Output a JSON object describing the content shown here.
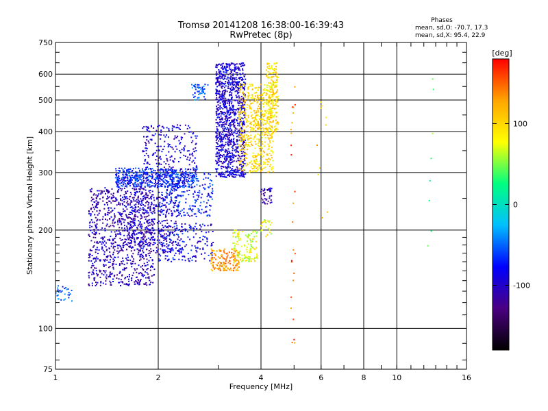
{
  "chart_data": {
    "type": "scatter",
    "title": "Tromsø 20141208 16:38:00-16:39:43",
    "subtitle": "RwPretec (8p)",
    "xlabel": "Frequency [MHz]",
    "ylabel": "Stationary phase Virtual Height [km]",
    "x_scale": "log",
    "y_scale": "log",
    "xlim": [
      1,
      16
    ],
    "ylim": [
      75,
      750
    ],
    "x_ticks": [
      1,
      2,
      4,
      6,
      8,
      10,
      16
    ],
    "x_tick_labels": [
      "1",
      "2",
      "4",
      "6",
      "8",
      "10",
      "16"
    ],
    "y_ticks": [
      75,
      100,
      200,
      300,
      400,
      500,
      600,
      750
    ],
    "y_tick_labels": [
      "75",
      "100",
      "200",
      "300",
      "400",
      "500",
      "600",
      "750"
    ],
    "grid": true,
    "stats": {
      "heading": "Phases",
      "line1": "mean, sd,O: -70.7, 17.3",
      "line2": "mean, sd,X:  95.4, 22.9"
    },
    "colorbar": {
      "label": "[deg]",
      "min": -180,
      "max": 180,
      "tick_values": [
        100,
        0,
        -100
      ],
      "tick_labels": [
        "100",
        "0",
        "-100"
      ]
    },
    "color_scale": [
      "#000000",
      "#4b0082",
      "#0000ff",
      "#00bfff",
      "#00ff80",
      "#ffff00",
      "#ffa500",
      "#ff0000"
    ],
    "point_clouds": [
      {
        "name": "",
        "x_range": [
          1.25,
          1.95
        ],
        "y_range": [
          135,
          270
        ],
        "phase": -105,
        "count": 900
      },
      {
        "name": "",
        "x_range": [
          1.55,
          2.3
        ],
        "y_range": [
          170,
          300
        ],
        "phase": -100,
        "count": 420
      },
      {
        "name": "",
        "x_range": [
          1.5,
          2.6
        ],
        "y_range": [
          270,
          310
        ],
        "phase": -70,
        "count": 450
      },
      {
        "name": "",
        "x_range": [
          1.8,
          2.6
        ],
        "y_range": [
          300,
          420
        ],
        "phase": -95,
        "count": 220
      },
      {
        "name": "",
        "x_range": [
          2.0,
          2.9
        ],
        "y_range": [
          220,
          300
        ],
        "phase": -75,
        "count": 240
      },
      {
        "name": "",
        "x_range": [
          2.0,
          2.9
        ],
        "y_range": [
          160,
          210
        ],
        "phase": -85,
        "count": 200
      },
      {
        "name": "",
        "x_range": [
          2.5,
          2.8
        ],
        "y_range": [
          500,
          560
        ],
        "phase": -55,
        "count": 50
      },
      {
        "name": "",
        "x_range": [
          2.95,
          3.6
        ],
        "y_range": [
          290,
          650
        ],
        "phase": -95,
        "count": 1100
      },
      {
        "name": "",
        "x_range": [
          3.45,
          4.35
        ],
        "y_range": [
          300,
          560
        ],
        "phase": 100,
        "count": 550
      },
      {
        "name": "",
        "x_range": [
          4.15,
          4.5
        ],
        "y_range": [
          400,
          650
        ],
        "phase": 95,
        "count": 200
      },
      {
        "name": "",
        "x_range": [
          2.85,
          3.45
        ],
        "y_range": [
          150,
          175
        ],
        "phase": 130,
        "count": 160
      },
      {
        "name": "",
        "x_range": [
          3.3,
          3.9
        ],
        "y_range": [
          160,
          200
        ],
        "phase": 75,
        "count": 120
      },
      {
        "name": "",
        "x_range": [
          4.0,
          4.3
        ],
        "y_range": [
          240,
          270
        ],
        "phase": -110,
        "count": 40
      },
      {
        "name": "",
        "x_range": [
          4.0,
          4.3
        ],
        "y_range": [
          190,
          215
        ],
        "phase": 80,
        "count": 25
      },
      {
        "name": "",
        "x_range": [
          1.0,
          1.12
        ],
        "y_range": [
          120,
          135
        ],
        "phase": -50,
        "count": 30
      },
      {
        "name": "",
        "x_range": [
          4.9,
          5.05
        ],
        "y_range": [
          85,
          620
        ],
        "phase": 150,
        "count": 25
      },
      {
        "name": "",
        "x_range": [
          5.8,
          6.3
        ],
        "y_range": [
          210,
          500
        ],
        "phase": 110,
        "count": 10
      },
      {
        "name": "",
        "x_range": [
          12.3,
          13.0
        ],
        "y_range": [
          175,
          650
        ],
        "phase": 40,
        "count": 8
      }
    ]
  }
}
